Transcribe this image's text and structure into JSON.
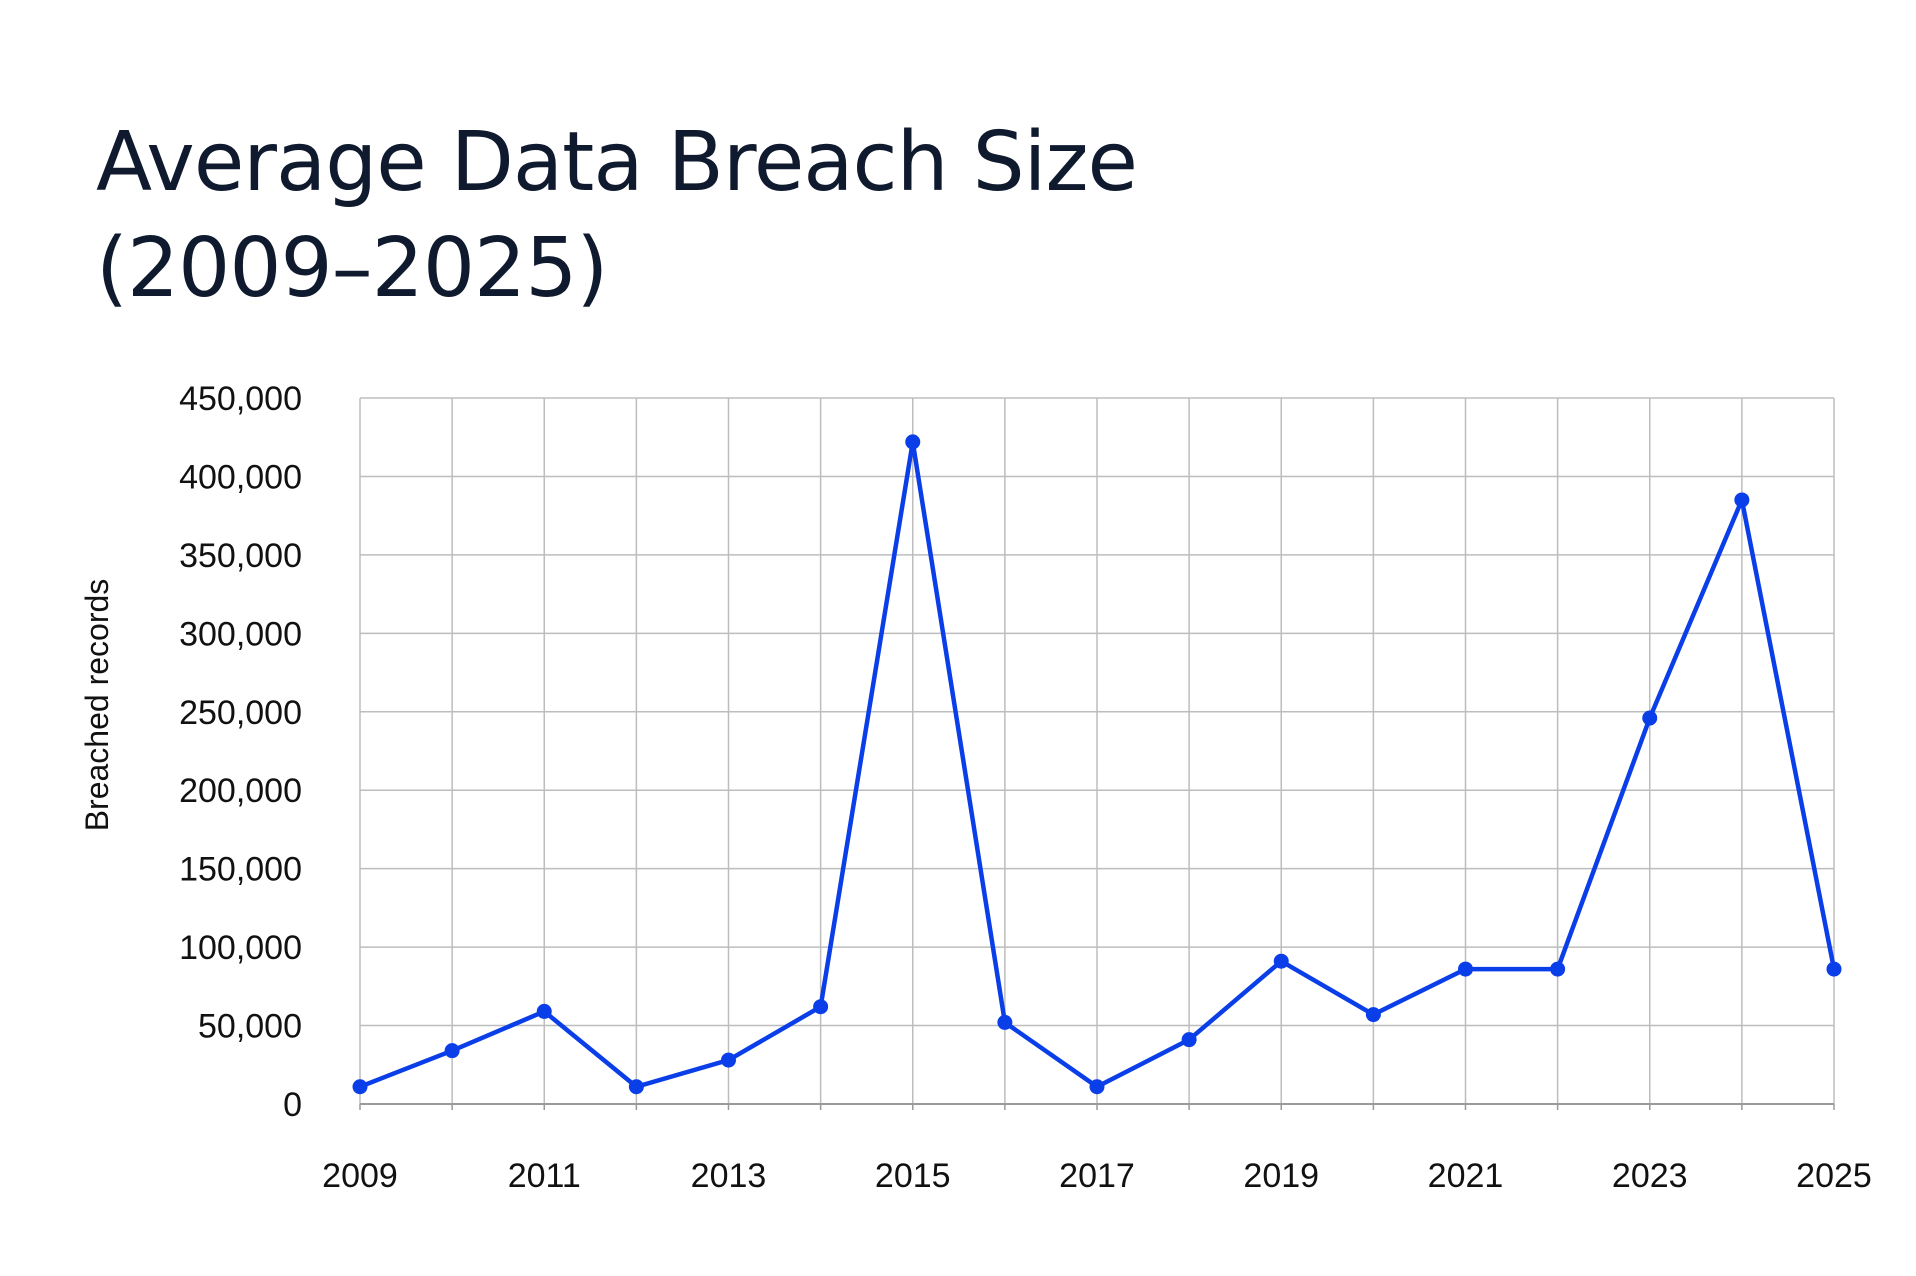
{
  "title_line1": "Average Data Breach Size",
  "title_line2": "(2009–2025)",
  "colors": {
    "line": "#0a3ee8",
    "grid": "#bdbdbd",
    "title": "#0f1a2e"
  },
  "chart_data": {
    "type": "line",
    "title": "Average Data Breach Size (2009–2025)",
    "xlabel": "",
    "ylabel": "Breached records",
    "x": [
      2009,
      2010,
      2011,
      2012,
      2013,
      2014,
      2015,
      2016,
      2017,
      2018,
      2019,
      2020,
      2021,
      2022,
      2023,
      2024,
      2025
    ],
    "series": [
      {
        "values": [
          11000,
          34000,
          59000,
          11000,
          28000,
          62000,
          422000,
          52000,
          11000,
          41000,
          91000,
          57000,
          86000,
          86000,
          246000,
          385000,
          86000
        ]
      }
    ],
    "x_tick_labels": [
      "2009",
      "2011",
      "2013",
      "2015",
      "2017",
      "2019",
      "2021",
      "2023",
      "2025"
    ],
    "y_tick_labels": [
      "0",
      "50,000",
      "100,000",
      "150,000",
      "200,000",
      "250,000",
      "300,000",
      "350,000",
      "400,000",
      "450,000"
    ],
    "y_ticks": [
      0,
      50000,
      100000,
      150000,
      200000,
      250000,
      300000,
      350000,
      400000,
      450000
    ],
    "ylim": [
      0,
      450000
    ],
    "xlim": [
      2009,
      2025
    ],
    "grid": true,
    "legend": "none"
  }
}
